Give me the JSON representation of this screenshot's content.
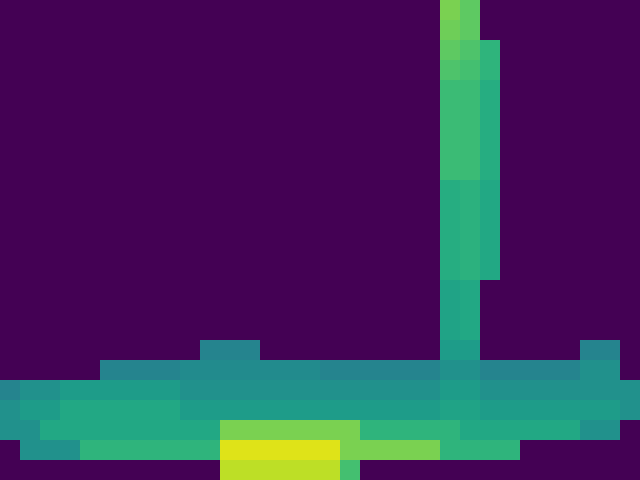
{
  "chart_data": {
    "type": "heatmap",
    "color": "viridis",
    "tick_labels": false,
    "color_range": [
      0,
      1
    ],
    "cells": [
      [
        0,
        0,
        0,
        0,
        0,
        0,
        0,
        0,
        0,
        0,
        0,
        0,
        0,
        0,
        0,
        0,
        0,
        0,
        0,
        0,
        0,
        0,
        0.8,
        0.75,
        0,
        0,
        0,
        0,
        0,
        0,
        0,
        0
      ],
      [
        0,
        0,
        0,
        0,
        0,
        0,
        0,
        0,
        0,
        0,
        0,
        0,
        0,
        0,
        0,
        0,
        0,
        0,
        0,
        0,
        0,
        0,
        0.78,
        0.75,
        0,
        0,
        0,
        0,
        0,
        0,
        0,
        0
      ],
      [
        0,
        0,
        0,
        0,
        0,
        0,
        0,
        0,
        0,
        0,
        0,
        0,
        0,
        0,
        0,
        0,
        0,
        0,
        0,
        0,
        0,
        0,
        0.75,
        0.72,
        0.65,
        0,
        0,
        0,
        0,
        0,
        0,
        0
      ],
      [
        0,
        0,
        0,
        0,
        0,
        0,
        0,
        0,
        0,
        0,
        0,
        0,
        0,
        0,
        0,
        0,
        0,
        0,
        0,
        0,
        0,
        0,
        0.72,
        0.7,
        0.65,
        0,
        0,
        0,
        0,
        0,
        0,
        0
      ],
      [
        0,
        0,
        0,
        0,
        0,
        0,
        0,
        0,
        0,
        0,
        0,
        0,
        0,
        0,
        0,
        0,
        0,
        0,
        0,
        0,
        0,
        0,
        0.68,
        0.68,
        0.62,
        0,
        0,
        0,
        0,
        0,
        0,
        0
      ],
      [
        0,
        0,
        0,
        0,
        0,
        0,
        0,
        0,
        0,
        0,
        0,
        0,
        0,
        0,
        0,
        0,
        0,
        0,
        0,
        0,
        0,
        0,
        0.68,
        0.68,
        0.62,
        0,
        0,
        0,
        0,
        0,
        0,
        0
      ],
      [
        0,
        0,
        0,
        0,
        0,
        0,
        0,
        0,
        0,
        0,
        0,
        0,
        0,
        0,
        0,
        0,
        0,
        0,
        0,
        0,
        0,
        0,
        0.68,
        0.68,
        0.62,
        0,
        0,
        0,
        0,
        0,
        0,
        0
      ],
      [
        0,
        0,
        0,
        0,
        0,
        0,
        0,
        0,
        0,
        0,
        0,
        0,
        0,
        0,
        0,
        0,
        0,
        0,
        0,
        0,
        0,
        0,
        0.68,
        0.68,
        0.62,
        0,
        0,
        0,
        0,
        0,
        0,
        0
      ],
      [
        0,
        0,
        0,
        0,
        0,
        0,
        0,
        0,
        0,
        0,
        0,
        0,
        0,
        0,
        0,
        0,
        0,
        0,
        0,
        0,
        0,
        0,
        0.68,
        0.68,
        0.62,
        0,
        0,
        0,
        0,
        0,
        0,
        0
      ],
      [
        0,
        0,
        0,
        0,
        0,
        0,
        0,
        0,
        0,
        0,
        0,
        0,
        0,
        0,
        0,
        0,
        0,
        0,
        0,
        0,
        0,
        0,
        0.62,
        0.64,
        0.6,
        0,
        0,
        0,
        0,
        0,
        0,
        0
      ],
      [
        0,
        0,
        0,
        0,
        0,
        0,
        0,
        0,
        0,
        0,
        0,
        0,
        0,
        0,
        0,
        0,
        0,
        0,
        0,
        0,
        0,
        0,
        0.62,
        0.64,
        0.6,
        0,
        0,
        0,
        0,
        0,
        0,
        0
      ],
      [
        0,
        0,
        0,
        0,
        0,
        0,
        0,
        0,
        0,
        0,
        0,
        0,
        0,
        0,
        0,
        0,
        0,
        0,
        0,
        0,
        0,
        0,
        0.62,
        0.64,
        0.6,
        0,
        0,
        0,
        0,
        0,
        0,
        0
      ],
      [
        0,
        0,
        0,
        0,
        0,
        0,
        0,
        0,
        0,
        0,
        0,
        0,
        0,
        0,
        0,
        0,
        0,
        0,
        0,
        0,
        0,
        0,
        0.62,
        0.64,
        0.6,
        0,
        0,
        0,
        0,
        0,
        0,
        0
      ],
      [
        0,
        0,
        0,
        0,
        0,
        0,
        0,
        0,
        0,
        0,
        0,
        0,
        0,
        0,
        0,
        0,
        0,
        0,
        0,
        0,
        0,
        0,
        0.62,
        0.64,
        0.6,
        0,
        0,
        0,
        0,
        0,
        0,
        0
      ],
      [
        0,
        0,
        0,
        0,
        0,
        0,
        0,
        0,
        0,
        0,
        0,
        0,
        0,
        0,
        0,
        0,
        0,
        0,
        0,
        0,
        0,
        0,
        0.58,
        0.6,
        0,
        0,
        0,
        0,
        0,
        0,
        0,
        0
      ],
      [
        0,
        0,
        0,
        0,
        0,
        0,
        0,
        0,
        0,
        0,
        0,
        0,
        0,
        0,
        0,
        0,
        0,
        0,
        0,
        0,
        0,
        0,
        0.58,
        0.6,
        0,
        0,
        0,
        0,
        0,
        0,
        0,
        0
      ],
      [
        0,
        0,
        0,
        0,
        0,
        0,
        0,
        0,
        0,
        0,
        0,
        0,
        0,
        0,
        0,
        0,
        0,
        0,
        0,
        0,
        0,
        0,
        0.58,
        0.6,
        0,
        0,
        0,
        0,
        0,
        0,
        0,
        0
      ],
      [
        0,
        0,
        0,
        0,
        0,
        0,
        0,
        0,
        0,
        0,
        0.45,
        0.45,
        0.45,
        0,
        0,
        0,
        0,
        0,
        0,
        0,
        0,
        0,
        0.55,
        0.55,
        0,
        0,
        0,
        0,
        0,
        0.45,
        0.45,
        0
      ],
      [
        0,
        0,
        0,
        0,
        0,
        0.45,
        0.45,
        0.45,
        0.45,
        0.48,
        0.48,
        0.48,
        0.48,
        0.48,
        0.48,
        0.48,
        0.45,
        0.45,
        0.45,
        0.45,
        0.45,
        0.45,
        0.5,
        0.5,
        0.45,
        0.45,
        0.45,
        0.45,
        0.45,
        0.5,
        0.5,
        0
      ],
      [
        0.45,
        0.5,
        0.5,
        0.55,
        0.55,
        0.55,
        0.55,
        0.55,
        0.55,
        0.5,
        0.5,
        0.5,
        0.5,
        0.5,
        0.5,
        0.5,
        0.5,
        0.5,
        0.5,
        0.5,
        0.5,
        0.5,
        0.55,
        0.55,
        0.5,
        0.5,
        0.5,
        0.5,
        0.5,
        0.5,
        0.5,
        0.5
      ],
      [
        0.5,
        0.55,
        0.55,
        0.6,
        0.6,
        0.6,
        0.6,
        0.6,
        0.6,
        0.55,
        0.55,
        0.55,
        0.55,
        0.55,
        0.55,
        0.55,
        0.55,
        0.55,
        0.55,
        0.55,
        0.55,
        0.55,
        0.58,
        0.58,
        0.55,
        0.55,
        0.55,
        0.55,
        0.55,
        0.55,
        0.55,
        0.5
      ],
      [
        0.5,
        0.5,
        0.6,
        0.6,
        0.6,
        0.6,
        0.6,
        0.6,
        0.6,
        0.6,
        0.6,
        0.8,
        0.8,
        0.8,
        0.8,
        0.8,
        0.8,
        0.8,
        0.65,
        0.65,
        0.65,
        0.65,
        0.65,
        0.6,
        0.6,
        0.6,
        0.6,
        0.6,
        0.6,
        0.5,
        0.5,
        0
      ],
      [
        0,
        0.5,
        0.5,
        0.5,
        0.65,
        0.65,
        0.65,
        0.65,
        0.65,
        0.65,
        0.65,
        0.95,
        0.95,
        0.95,
        0.95,
        0.95,
        0.95,
        0.8,
        0.8,
        0.8,
        0.8,
        0.8,
        0.65,
        0.65,
        0.65,
        0.65,
        0,
        0,
        0,
        0,
        0,
        0
      ],
      [
        0,
        0,
        0,
        0,
        0,
        0,
        0,
        0,
        0,
        0,
        0,
        0.9,
        0.9,
        0.9,
        0.9,
        0.9,
        0.9,
        0.7,
        0,
        0,
        0,
        0,
        0,
        0,
        0,
        0,
        0,
        0,
        0,
        0,
        0,
        0
      ]
    ]
  }
}
